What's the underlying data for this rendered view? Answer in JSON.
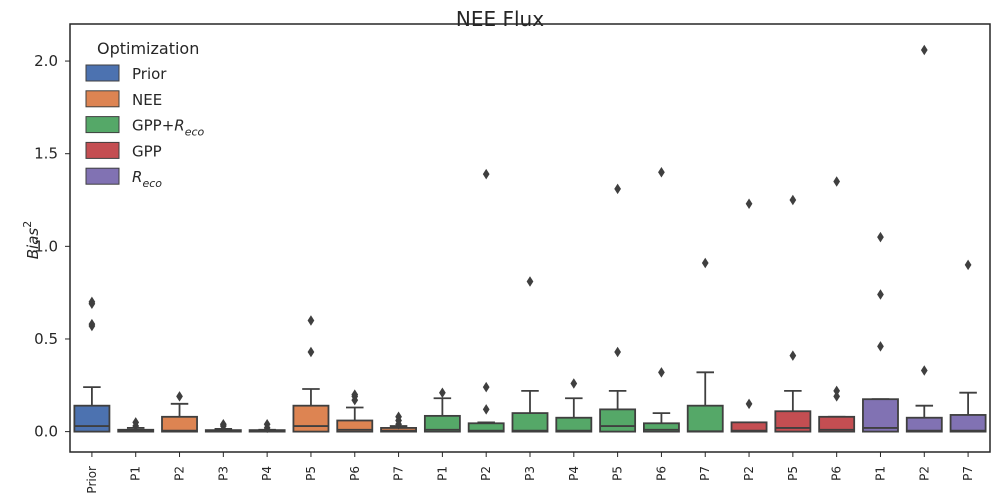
{
  "chart_data": {
    "type": "box",
    "title": "NEE Flux",
    "ylabel": "Bias",
    "ylabel_sup": "2",
    "ylim": [
      -0.11,
      2.2
    ],
    "yticks": [
      0.0,
      0.5,
      1.0,
      1.5,
      2.0
    ],
    "ytick_labels": [
      "0.0",
      "0.5",
      "1.0",
      "1.5",
      "2.0"
    ],
    "legend": {
      "title": "Optimization",
      "placement": "top-left",
      "entries": [
        {
          "label": "Prior",
          "sub": "",
          "color": "#4c72b0"
        },
        {
          "label": "NEE",
          "sub": "",
          "color": "#dd8452"
        },
        {
          "label": "GPP+",
          "sub": "R",
          "subscript": "eco",
          "color": "#55a868"
        },
        {
          "label": "GPP",
          "sub": "",
          "color": "#c44e52"
        },
        {
          "label": "",
          "sub": "R",
          "subscript": "eco",
          "color": "#8172b3"
        }
      ]
    },
    "boxes": [
      {
        "category": "Prior",
        "group": "Prior",
        "color": "#4c72b0",
        "q1": 0.0,
        "median": 0.03,
        "q3": 0.14,
        "whisker_low": 0.0,
        "whisker_high": 0.24,
        "outliers": [
          0.57,
          0.58,
          0.69,
          0.7
        ]
      },
      {
        "category": "P1",
        "group": "NEE",
        "color": "#dd8452",
        "q1": 0.0,
        "median": 0.005,
        "q3": 0.01,
        "whisker_low": 0.0,
        "whisker_high": 0.02,
        "outliers": [
          0.03,
          0.05
        ]
      },
      {
        "category": "P2",
        "group": "NEE",
        "color": "#dd8452",
        "q1": 0.0,
        "median": 0.005,
        "q3": 0.08,
        "whisker_low": 0.0,
        "whisker_high": 0.15,
        "outliers": [
          0.19
        ]
      },
      {
        "category": "P3",
        "group": "NEE",
        "color": "#dd8452",
        "q1": 0.0,
        "median": 0.002,
        "q3": 0.008,
        "whisker_low": 0.0,
        "whisker_high": 0.015,
        "outliers": [
          0.03,
          0.04
        ]
      },
      {
        "category": "P4",
        "group": "NEE",
        "color": "#dd8452",
        "q1": 0.0,
        "median": 0.002,
        "q3": 0.006,
        "whisker_low": 0.0,
        "whisker_high": 0.01,
        "outliers": [
          0.02,
          0.04
        ]
      },
      {
        "category": "P5",
        "group": "NEE",
        "color": "#dd8452",
        "q1": 0.0,
        "median": 0.03,
        "q3": 0.14,
        "whisker_low": 0.0,
        "whisker_high": 0.23,
        "outliers": [
          0.43,
          0.6
        ]
      },
      {
        "category": "P6",
        "group": "NEE",
        "color": "#dd8452",
        "q1": 0.0,
        "median": 0.01,
        "q3": 0.06,
        "whisker_low": 0.0,
        "whisker_high": 0.13,
        "outliers": [
          0.17,
          0.19,
          0.2
        ]
      },
      {
        "category": "P7",
        "group": "NEE",
        "color": "#dd8452",
        "q1": 0.0,
        "median": 0.005,
        "q3": 0.02,
        "whisker_low": 0.0,
        "whisker_high": 0.03,
        "outliers": [
          0.04,
          0.06,
          0.08
        ]
      },
      {
        "category": "P1",
        "group": "GPP+Reco",
        "color": "#55a868",
        "q1": 0.0,
        "median": 0.01,
        "q3": 0.085,
        "whisker_low": 0.0,
        "whisker_high": 0.18,
        "outliers": [
          0.21
        ]
      },
      {
        "category": "P2",
        "group": "GPP+Reco",
        "color": "#55a868",
        "q1": 0.0,
        "median": 0.005,
        "q3": 0.045,
        "whisker_low": 0.0,
        "whisker_high": 0.05,
        "outliers": [
          0.12,
          0.24,
          1.39
        ]
      },
      {
        "category": "P3",
        "group": "GPP+Reco",
        "color": "#55a868",
        "q1": 0.0,
        "median": 0.005,
        "q3": 0.1,
        "whisker_low": 0.0,
        "whisker_high": 0.22,
        "outliers": [
          0.81
        ]
      },
      {
        "category": "P4",
        "group": "GPP+Reco",
        "color": "#55a868",
        "q1": 0.0,
        "median": 0.005,
        "q3": 0.075,
        "whisker_low": 0.0,
        "whisker_high": 0.18,
        "outliers": [
          0.26
        ]
      },
      {
        "category": "P5",
        "group": "GPP+Reco",
        "color": "#55a868",
        "q1": 0.0,
        "median": 0.03,
        "q3": 0.12,
        "whisker_low": 0.0,
        "whisker_high": 0.22,
        "outliers": [
          0.43,
          1.31
        ]
      },
      {
        "category": "P6",
        "group": "GPP+Reco",
        "color": "#55a868",
        "q1": 0.0,
        "median": 0.01,
        "q3": 0.045,
        "whisker_low": 0.0,
        "whisker_high": 0.1,
        "outliers": [
          0.32,
          1.4
        ]
      },
      {
        "category": "P7",
        "group": "GPP+Reco",
        "color": "#55a868",
        "q1": 0.0,
        "median": 0.002,
        "q3": 0.14,
        "whisker_low": 0.0,
        "whisker_high": 0.32,
        "outliers": [
          0.91
        ]
      },
      {
        "category": "P2",
        "group": "GPP",
        "color": "#c44e52",
        "q1": 0.0,
        "median": 0.005,
        "q3": 0.05,
        "whisker_low": 0.0,
        "whisker_high": 0.05,
        "outliers": [
          0.15,
          1.23
        ]
      },
      {
        "category": "P5",
        "group": "GPP",
        "color": "#c44e52",
        "q1": 0.0,
        "median": 0.02,
        "q3": 0.11,
        "whisker_low": 0.0,
        "whisker_high": 0.22,
        "outliers": [
          0.41,
          1.25
        ]
      },
      {
        "category": "P6",
        "group": "GPP",
        "color": "#c44e52",
        "q1": 0.0,
        "median": 0.01,
        "q3": 0.08,
        "whisker_low": 0.0,
        "whisker_high": 0.08,
        "outliers": [
          0.19,
          0.22,
          1.35
        ]
      },
      {
        "category": "P1",
        "group": "Reco",
        "color": "#8172b3",
        "q1": 0.0,
        "median": 0.02,
        "q3": 0.175,
        "whisker_low": 0.0,
        "whisker_high": 0.175,
        "outliers": [
          0.46,
          0.74,
          1.05
        ]
      },
      {
        "category": "P2",
        "group": "Reco",
        "color": "#8172b3",
        "q1": 0.0,
        "median": 0.005,
        "q3": 0.075,
        "whisker_low": 0.0,
        "whisker_high": 0.14,
        "outliers": [
          0.33,
          2.06
        ]
      },
      {
        "category": "P7",
        "group": "Reco",
        "color": "#8172b3",
        "q1": 0.0,
        "median": 0.005,
        "q3": 0.09,
        "whisker_low": 0.0,
        "whisker_high": 0.21,
        "outliers": [
          0.9
        ]
      }
    ],
    "colors": {
      "edge": "#3f3f3f",
      "frame": "#262626"
    }
  }
}
